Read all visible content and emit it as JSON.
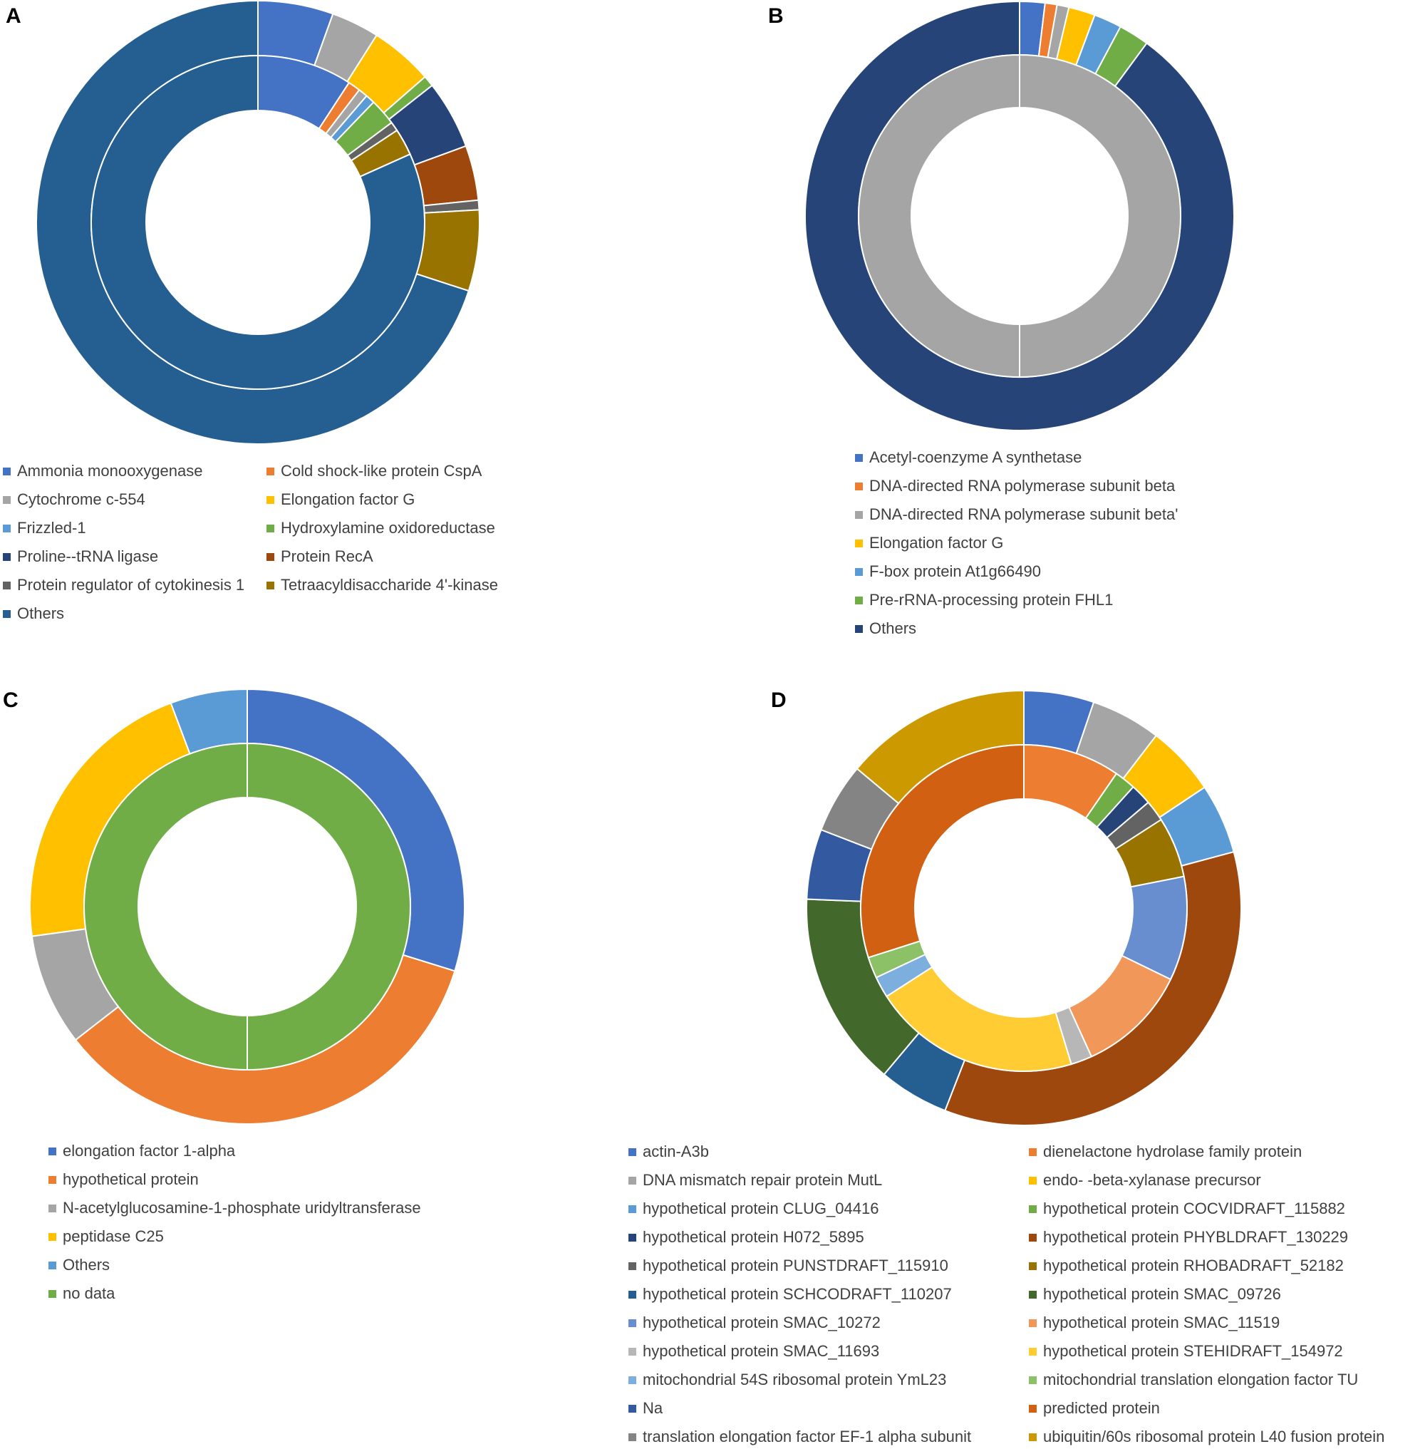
{
  "chart_data": [
    {
      "type": "pie",
      "panel": "A",
      "title": "",
      "series": [
        {
          "name": "outer",
          "slices": [
            {
              "label": "Ammonia monooxygenase",
              "value": 5.5
            },
            {
              "label": "Cytochrome c-554",
              "value": 3.5
            },
            {
              "label": "Elongation factor G",
              "value": 4.6
            },
            {
              "label": "Hydroxylamine oxidoreductase",
              "value": 0.8
            },
            {
              "label": "Proline--tRNA ligase",
              "value": 5.0
            },
            {
              "label": "Protein RecA",
              "value": 4.0
            },
            {
              "label": "Protein regulator of cytokinesis 1",
              "value": 0.7
            },
            {
              "label": "Tetraacyldisaccharide 4'-kinase",
              "value": 5.9
            },
            {
              "label": "Others",
              "value": 70.0
            }
          ]
        },
        {
          "name": "inner",
          "slices": [
            {
              "label": "Ammonia monooxygenase",
              "value": 9.2
            },
            {
              "label": "Cold shock-like protein CspA",
              "value": 1.2
            },
            {
              "label": "Cytochrome c-554",
              "value": 0.9
            },
            {
              "label": "Frizzled-1",
              "value": 0.9
            },
            {
              "label": "Hydroxylamine oxidoreductase",
              "value": 2.6
            },
            {
              "label": "Protein regulator of cytokinesis 1",
              "value": 0.9
            },
            {
              "label": "Tetraacyldisaccharide 4'-kinase",
              "value": 2.6
            },
            {
              "label": "Others",
              "value": 81.7
            }
          ]
        }
      ],
      "legend": [
        {
          "label": "Ammonia monooxygenase",
          "color": "#4472C4"
        },
        {
          "label": "Cold shock-like protein CspA",
          "color": "#ED7D31"
        },
        {
          "label": "Cytochrome c-554",
          "color": "#A5A5A5"
        },
        {
          "label": "Elongation factor G",
          "color": "#FFC000"
        },
        {
          "label": "Frizzled-1",
          "color": "#5B9BD5"
        },
        {
          "label": "Hydroxylamine oxidoreductase",
          "color": "#70AD47"
        },
        {
          "label": "Proline--tRNA ligase",
          "color": "#264478"
        },
        {
          "label": "Protein RecA",
          "color": "#9E480E"
        },
        {
          "label": "Protein regulator of cytokinesis 1",
          "color": "#636363"
        },
        {
          "label": "Tetraacyldisaccharide 4'-kinase",
          "color": "#997300"
        },
        {
          "label": "Others",
          "color": "#255E91"
        }
      ]
    },
    {
      "type": "pie",
      "panel": "B",
      "title": "",
      "series": [
        {
          "name": "outer",
          "slices": [
            {
              "label": "Acetyl-coenzyme A synthetase",
              "value": 1.9
            },
            {
              "label": "DNA-directed RNA polymerase subunit beta",
              "value": 0.9
            },
            {
              "label": "DNA-directed RNA polymerase subunit beta'",
              "value": 0.9
            },
            {
              "label": "Elongation factor G",
              "value": 2.0
            },
            {
              "label": "F-box protein At1g66490",
              "value": 2.1
            },
            {
              "label": "Pre-rRNA-processing protein FHL1",
              "value": 2.3
            },
            {
              "label": "Others",
              "value": 89.9
            }
          ]
        },
        {
          "name": "inner",
          "slices": [
            {
              "label": "DNA-directed RNA polymerase subunit beta'",
              "value": 100
            }
          ]
        }
      ],
      "legend": [
        {
          "label": "Acetyl-coenzyme A synthetase",
          "color": "#4472C4"
        },
        {
          "label": "DNA-directed RNA polymerase subunit beta",
          "color": "#ED7D31"
        },
        {
          "label": "DNA-directed RNA polymerase subunit beta'",
          "color": "#A5A5A5"
        },
        {
          "label": "Elongation factor G",
          "color": "#FFC000"
        },
        {
          "label": "F-box protein At1g66490",
          "color": "#5B9BD5"
        },
        {
          "label": "Pre-rRNA-processing protein FHL1",
          "color": "#70AD47"
        },
        {
          "label": "Others",
          "color": "#264478"
        }
      ]
    },
    {
      "type": "pie",
      "panel": "C",
      "title": "",
      "series": [
        {
          "name": "outer",
          "slices": [
            {
              "label": "elongation factor 1-alpha",
              "value": 29.7
            },
            {
              "label": "hypothetical protein",
              "value": 34.6
            },
            {
              "label": "N-acetylglucosamine-1-phosphate uridyltransferase",
              "value": 8.3
            },
            {
              "label": "peptidase C25",
              "value": 21.4
            },
            {
              "label": "Others",
              "value": 5.7
            }
          ]
        },
        {
          "name": "inner",
          "slices": [
            {
              "label": "no data",
              "value": 100
            }
          ]
        }
      ],
      "legend": [
        {
          "label": "elongation factor 1-alpha",
          "color": "#4472C4"
        },
        {
          "label": "hypothetical protein",
          "color": "#ED7D31"
        },
        {
          "label": "N-acetylglucosamine-1-phosphate uridyltransferase",
          "color": "#A5A5A5"
        },
        {
          "label": "peptidase C25",
          "color": "#FFC000"
        },
        {
          "label": "Others",
          "color": "#5B9BD5"
        },
        {
          "label": "no data",
          "color": "#70AD47"
        }
      ]
    },
    {
      "type": "pie",
      "panel": "D",
      "title": "",
      "series": [
        {
          "name": "outer",
          "slices": [
            {
              "label": "actin-A3b",
              "value": 5.2
            },
            {
              "label": "DNA mismatch repair protein MutL",
              "value": 5.2
            },
            {
              "label": "endo- -beta-xylanase precursor",
              "value": 5.2
            },
            {
              "label": "hypothetical protein CLUG_04416",
              "value": 5.2
            },
            {
              "label": "hypothetical protein PHYBLDRAFT_130229",
              "value": 35.0
            },
            {
              "label": "hypothetical protein SCHCODRAFT_110207",
              "value": 5.2
            },
            {
              "label": "hypothetical protein SMAC_09726",
              "value": 14.5
            },
            {
              "label": "Na",
              "value": 5.2
            },
            {
              "label": "translation elongation factor EF-1 alpha subunit",
              "value": 5.2
            },
            {
              "label": "ubiquitin/60s ribosomal protein L40 fusion protein",
              "value": 13.9
            }
          ]
        },
        {
          "name": "inner",
          "slices": [
            {
              "label": "dienelactone hydrolase family protein",
              "value": 9.6
            },
            {
              "label": "hypothetical protein COCVIDRAFT_115882",
              "value": 2.1
            },
            {
              "label": "hypothetical protein H072_5895",
              "value": 2.1
            },
            {
              "label": "hypothetical protein PUNSTDRAFT_115910",
              "value": 2.1
            },
            {
              "label": "hypothetical protein RHOBADRAFT_52182",
              "value": 6.0
            },
            {
              "label": "hypothetical protein SMAC_10272",
              "value": 10.3
            },
            {
              "label": "hypothetical protein SMAC_11519",
              "value": 11.0
            },
            {
              "label": "hypothetical protein SMAC_11693",
              "value": 2.1
            },
            {
              "label": "hypothetical protein STEHIDRAFT_154972",
              "value": 20.6
            },
            {
              "label": "mitochondrial 54S ribosomal protein YmL23",
              "value": 2.1
            },
            {
              "label": "mitochondrial translation elongation factor TU",
              "value": 2.1
            },
            {
              "label": "predicted protein",
              "value": 29.9
            }
          ]
        }
      ],
      "legend": [
        {
          "label": "actin-A3b",
          "color": "#4472C4"
        },
        {
          "label": "dienelactone hydrolase family protein",
          "color": "#ED7D31"
        },
        {
          "label": "DNA mismatch repair protein MutL",
          "color": "#A5A5A5"
        },
        {
          "label": "endo- -beta-xylanase precursor",
          "color": "#FFC000"
        },
        {
          "label": "hypothetical protein CLUG_04416",
          "color": "#5B9BD5"
        },
        {
          "label": "hypothetical protein COCVIDRAFT_115882",
          "color": "#70AD47"
        },
        {
          "label": "hypothetical protein H072_5895",
          "color": "#264478"
        },
        {
          "label": "hypothetical protein PHYBLDRAFT_130229",
          "color": "#9E480E"
        },
        {
          "label": "hypothetical protein PUNSTDRAFT_115910",
          "color": "#636363"
        },
        {
          "label": "hypothetical protein RHOBADRAFT_52182",
          "color": "#997300"
        },
        {
          "label": "hypothetical protein SCHCODRAFT_110207",
          "color": "#255E91"
        },
        {
          "label": "hypothetical protein SMAC_09726",
          "color": "#43682B"
        },
        {
          "label": "hypothetical protein SMAC_10272",
          "color": "#698ED0"
        },
        {
          "label": "hypothetical protein SMAC_11519",
          "color": "#F1975A"
        },
        {
          "label": "hypothetical protein SMAC_11693",
          "color": "#B7B7B7"
        },
        {
          "label": "hypothetical protein STEHIDRAFT_154972",
          "color": "#FFCD33"
        },
        {
          "label": "mitochondrial 54S ribosomal protein YmL23",
          "color": "#7CAFDD"
        },
        {
          "label": "mitochondrial translation elongation factor TU",
          "color": "#8CC168"
        },
        {
          "label": "Na",
          "color": "#335AA1"
        },
        {
          "label": "predicted protein",
          "color": "#D26012"
        },
        {
          "label": "translation elongation factor EF-1 alpha subunit",
          "color": "#848484"
        },
        {
          "label": "ubiquitin/60s ribosomal protein L40 fusion protein",
          "color": "#CC9A00"
        }
      ]
    }
  ]
}
